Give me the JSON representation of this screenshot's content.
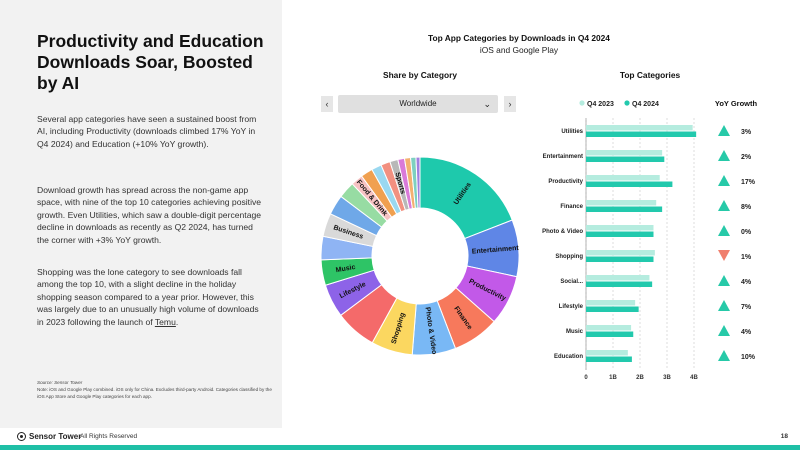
{
  "headline": "Productivity and Education Downloads Soar, Boosted by AI",
  "paragraphs": {
    "p1": "Several app categories have seen a sustained boost from AI, including Productivity (downloads climbed 17% YoY in Q4 2024) and Education (+10% YoY growth).",
    "p2": "Download growth has spread across the non-game app space, with nine of the top 10 categories achieving positive growth. Even Utilities, which saw a double-digit percentage decline in downloads as recently as Q2 2024, has turned the corner with +3% YoY growth.",
    "p3_text": "Shopping was the lone category to see downloads fall among the top 10, with a slight decline in the holiday shopping season compared to a year prior. However, this was largely due to an unusually high volume of downloads in 2023 following the launch of ",
    "p3_link": "Temu",
    "p3_end": "."
  },
  "source": {
    "label": "Source: Sensor Tower",
    "note": "Note: iOS and Google Play combined. iOS only for China. Excludes third-party Android. Categories classified by the iOS App Store and Google Play categories for each app."
  },
  "footer": {
    "brand": "Sensor Tower",
    "rights": "All Rights Reserved",
    "page": "18"
  },
  "controls": {
    "prev": "‹",
    "next": "›",
    "region": "Worldwide",
    "caret": "⌄"
  },
  "colors": {
    "accent": "#1fbfa6",
    "q2023": "#b5ecdf",
    "q2024": "#22c9ad",
    "up": "#26c9a8",
    "down": "#f07f6d"
  },
  "chart_data": [
    {
      "type": "pie",
      "title": "Top App Categories by Downloads in Q4 2024",
      "subtitle": "iOS and Google Play",
      "section_title": "Share by Category",
      "slices": [
        {
          "label": "Utilities",
          "value": 17.5,
          "color": "#1ec9ac"
        },
        {
          "label": "Entertainment",
          "value": 8.5,
          "color": "#5f86e6"
        },
        {
          "label": "Productivity",
          "value": 7.5,
          "color": "#c259e8"
        },
        {
          "label": "Finance",
          "value": 7,
          "color": "#f7795c"
        },
        {
          "label": "Photo & Video",
          "value": 6.5,
          "color": "#79b8f5"
        },
        {
          "label": "Shopping",
          "value": 6.2,
          "color": "#fbd760"
        },
        {
          "label": "",
          "value": 6.2,
          "color": "#f46a6a"
        },
        {
          "label": "Lifestyle",
          "value": 5,
          "color": "#8d63e8"
        },
        {
          "label": "Music",
          "value": 3.8,
          "color": "#2ec466"
        },
        {
          "label": "",
          "value": 3.5,
          "color": "#8fb4f4"
        },
        {
          "label": "Business",
          "value": 3.5,
          "color": "#d9d9d9"
        },
        {
          "label": "",
          "value": 3,
          "color": "#6fa8e8"
        },
        {
          "label": "",
          "value": 2.5,
          "color": "#97dca3"
        },
        {
          "label": "Food & Drink",
          "value": 1.8,
          "color": "#f6c3c3"
        },
        {
          "label": "",
          "value": 1.8,
          "color": "#f0a050"
        },
        {
          "label": "",
          "value": 1.5,
          "color": "#9ad8f0"
        },
        {
          "label": "",
          "value": 1.4,
          "color": "#f29080"
        },
        {
          "label": "Sports",
          "value": 1.2,
          "color": "#b8b8b8"
        },
        {
          "label": "",
          "value": 1,
          "color": "#d97ad9"
        },
        {
          "label": "",
          "value": 0.9,
          "color": "#f3b070"
        },
        {
          "label": "",
          "value": 0.8,
          "color": "#7ed0c0"
        },
        {
          "label": "",
          "value": 0.6,
          "color": "#a080e0"
        }
      ]
    },
    {
      "type": "bar",
      "orientation": "horizontal",
      "section_title": "Top Categories",
      "yoy_header": "YoY Growth",
      "categories": [
        "Utilities",
        "Entertainment",
        "Productivity",
        "Finance",
        "Photo & Video",
        "Shopping",
        "Social...",
        "Lifestyle",
        "Music",
        "Education"
      ],
      "series": [
        {
          "name": "Q4 2023",
          "values": [
            3.95,
            2.82,
            2.73,
            2.6,
            2.5,
            2.55,
            2.35,
            1.82,
            1.67,
            1.55
          ]
        },
        {
          "name": "Q4 2024",
          "values": [
            4.08,
            2.9,
            3.2,
            2.82,
            2.5,
            2.5,
            2.45,
            1.95,
            1.75,
            1.7
          ]
        }
      ],
      "yoy": [
        "3%",
        "2%",
        "17%",
        "8%",
        "0%",
        "1%",
        "4%",
        "7%",
        "4%",
        "10%"
      ],
      "yoy_direction": [
        "up",
        "up",
        "up",
        "up",
        "up",
        "down",
        "up",
        "up",
        "up",
        "up"
      ],
      "ticks": [
        "0",
        "1B",
        "2B",
        "3B",
        "4B"
      ],
      "xlim": [
        0,
        4.4
      ]
    }
  ]
}
